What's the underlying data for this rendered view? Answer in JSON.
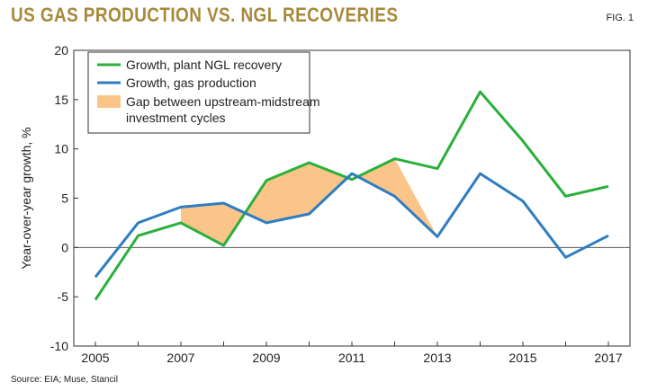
{
  "header": {
    "title": "US GAS PRODUCTION VS. NGL RECOVERIES",
    "fig": "FIG. 1"
  },
  "footer": {
    "source": "Source: EIA; Muse, Stancil"
  },
  "colors": {
    "ngl": "#2ab03a",
    "gas": "#2f7dc1",
    "gap": "#fbc58a",
    "title": "#a8883a"
  },
  "chart_data": {
    "type": "line",
    "ylabel": "Year-over-year growth, %",
    "xlabel": "",
    "ylim": [
      -10,
      20
    ],
    "yticks": [
      -10,
      -5,
      0,
      5,
      10,
      15,
      20
    ],
    "xticks": [
      2005,
      2007,
      2009,
      2011,
      2013,
      2015,
      2017
    ],
    "grid": false,
    "legend_position": "top-left",
    "x": [
      2005,
      2006,
      2007,
      2008,
      2009,
      2010,
      2011,
      2012,
      2013,
      2014,
      2015,
      2016,
      2017
    ],
    "series": [
      {
        "name": "Growth, plant NGL recovery",
        "color": "#2ab03a",
        "values": [
          -5.3,
          1.2,
          2.5,
          0.2,
          6.8,
          8.6,
          6.9,
          9.0,
          8.0,
          15.8,
          10.8,
          5.2,
          6.2
        ]
      },
      {
        "name": "Growth, gas production",
        "color": "#2f7dc1",
        "values": [
          -3.0,
          2.5,
          4.1,
          4.5,
          2.5,
          3.4,
          7.5,
          5.2,
          1.1,
          7.5,
          4.7,
          -1.0,
          1.2
        ]
      }
    ],
    "gap_label": "Gap between upstream-midstream investment cycles",
    "gap_label_lines": [
      "Gap between upstream-midstream",
      "investment cycles"
    ]
  }
}
